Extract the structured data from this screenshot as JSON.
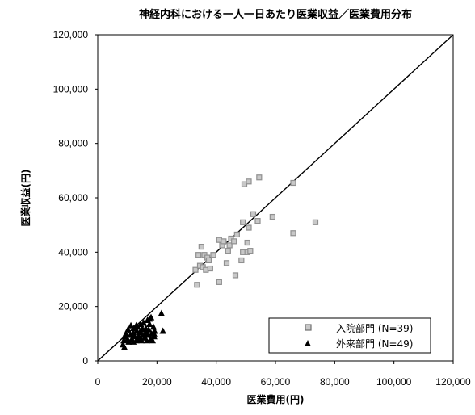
{
  "chart_data": {
    "type": "scatter",
    "title": "神経内科における一人一日あたり医業収益／医業費用分布",
    "xlabel": "医業費用(円)",
    "ylabel": "医業収益(円)",
    "xlim": [
      0,
      120000
    ],
    "ylim": [
      0,
      120000
    ],
    "x_ticks": [
      0,
      20000,
      40000,
      60000,
      80000,
      100000,
      120000
    ],
    "y_ticks": [
      0,
      20000,
      40000,
      60000,
      80000,
      100000,
      120000
    ],
    "x_tick_labels": [
      "0",
      "20,000",
      "40,000",
      "60,000",
      "80,000",
      "100,000",
      "120,000"
    ],
    "y_tick_labels": [
      "0",
      "20,000",
      "40,000",
      "60,000",
      "80,000",
      "100,000",
      "120,000"
    ],
    "grid": false,
    "legend_position": "bottom-right",
    "reference_line": {
      "from": [
        0,
        0
      ],
      "to": [
        120000,
        120000
      ]
    },
    "series": [
      {
        "name": "入院部門 (N=39)",
        "marker": "square",
        "color": "#909090",
        "points": [
          [
            33000,
            33500
          ],
          [
            33500,
            28000
          ],
          [
            34000,
            39000
          ],
          [
            34500,
            35000
          ],
          [
            35000,
            42000
          ],
          [
            35500,
            34500
          ],
          [
            36000,
            39000
          ],
          [
            36500,
            33500
          ],
          [
            37000,
            38000
          ],
          [
            37500,
            37000
          ],
          [
            38000,
            34000
          ],
          [
            39000,
            39000
          ],
          [
            41000,
            29000
          ],
          [
            41000,
            44500
          ],
          [
            42000,
            42500
          ],
          [
            42500,
            44000
          ],
          [
            43500,
            36000
          ],
          [
            44000,
            40500
          ],
          [
            44500,
            42500
          ],
          [
            45000,
            45000
          ],
          [
            46000,
            44000
          ],
          [
            46500,
            31500
          ],
          [
            47000,
            46500
          ],
          [
            48500,
            37000
          ],
          [
            49000,
            40000
          ],
          [
            49000,
            51000
          ],
          [
            49500,
            65000
          ],
          [
            50500,
            40000
          ],
          [
            50500,
            43500
          ],
          [
            51000,
            49000
          ],
          [
            51000,
            66000
          ],
          [
            51500,
            40500
          ],
          [
            52500,
            54000
          ],
          [
            54000,
            51500
          ],
          [
            54500,
            67500
          ],
          [
            59000,
            53000
          ],
          [
            66000,
            47000
          ],
          [
            66000,
            65500
          ],
          [
            73500,
            51000
          ]
        ]
      },
      {
        "name": "外来部門 (N=49)",
        "marker": "triangle",
        "color": "#000000",
        "points": [
          [
            8500,
            6000
          ],
          [
            8800,
            7500
          ],
          [
            9000,
            5000
          ],
          [
            9200,
            9000
          ],
          [
            9500,
            10000
          ],
          [
            10000,
            8000
          ],
          [
            10200,
            11500
          ],
          [
            10500,
            7000
          ],
          [
            11000,
            9500
          ],
          [
            11200,
            13000
          ],
          [
            11500,
            8000
          ],
          [
            12000,
            10500
          ],
          [
            12200,
            12000
          ],
          [
            12500,
            9000
          ],
          [
            13000,
            7500
          ],
          [
            13200,
            11000
          ],
          [
            13500,
            12500
          ],
          [
            13800,
            9000
          ],
          [
            14000,
            8000
          ],
          [
            14200,
            10500
          ],
          [
            14500,
            13500
          ],
          [
            14800,
            7500
          ],
          [
            15000,
            9500
          ],
          [
            15200,
            11500
          ],
          [
            15500,
            14000
          ],
          [
            15800,
            8500
          ],
          [
            16000,
            10000
          ],
          [
            16200,
            12000
          ],
          [
            16500,
            7500
          ],
          [
            16800,
            15000
          ],
          [
            17000,
            9500
          ],
          [
            17200,
            11500
          ],
          [
            17500,
            13500
          ],
          [
            17800,
            8000
          ],
          [
            18000,
            16000
          ],
          [
            18200,
            10000
          ],
          [
            18500,
            7500
          ],
          [
            18800,
            12500
          ],
          [
            19000,
            9000
          ],
          [
            19200,
            11000
          ],
          [
            12000,
            7000
          ],
          [
            13000,
            13000
          ],
          [
            11800,
            9800
          ],
          [
            15000,
            12000
          ],
          [
            16500,
            10500
          ],
          [
            17500,
            15500
          ],
          [
            19000,
            10000
          ],
          [
            21500,
            17500
          ],
          [
            22000,
            11000
          ]
        ]
      }
    ]
  }
}
